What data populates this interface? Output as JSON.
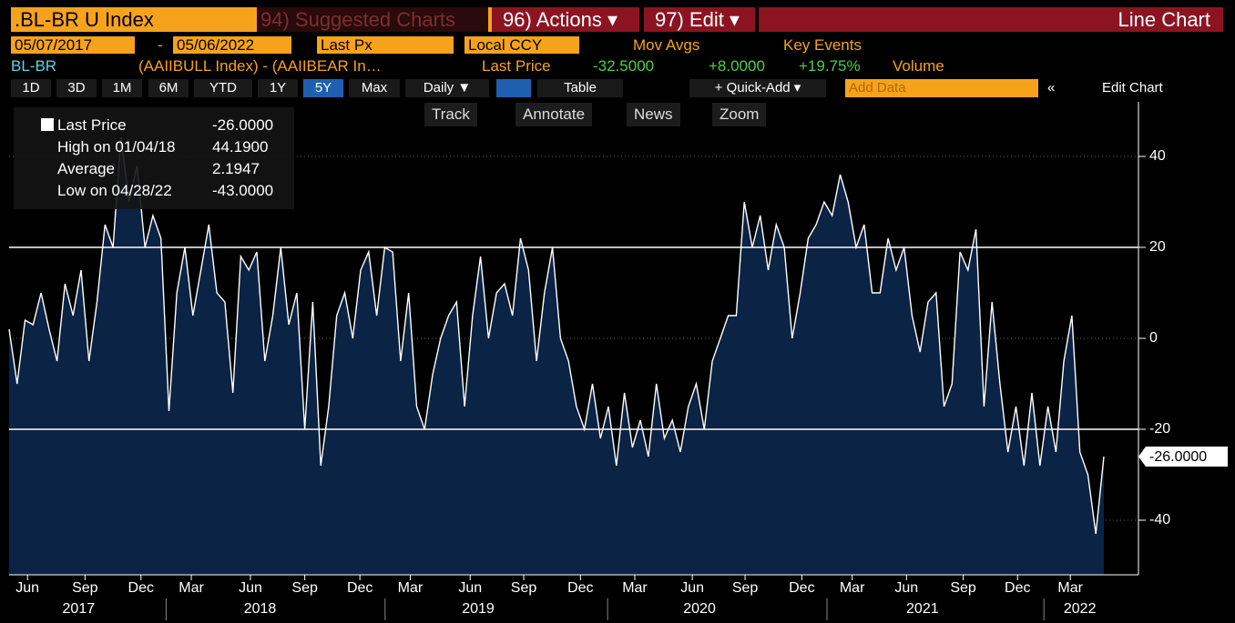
{
  "header": {
    "security": ".BL-BR U Index",
    "suggested": "94) Suggested Charts",
    "actions": "96) Actions ▾",
    "edit": "97) Edit ▾",
    "view": "Line Chart"
  },
  "settings": {
    "start": "05/07/2017",
    "dash": "-",
    "end": "05/06/2022",
    "field": "Last Px",
    "currency": "Local CCY",
    "mov_avgs": "Mov Avgs",
    "key_events": "Key Events"
  },
  "quote": {
    "ticker": "BL-BR",
    "description": "(AAIIBULL Index) - (AAIIBEAR In…",
    "last_label": "Last Price",
    "last": "-32.5000",
    "change": "+8.0000",
    "change_pct": "+19.75%",
    "volume": "Volume"
  },
  "toolbar": {
    "periods": [
      "1D",
      "3D",
      "1M",
      "6M",
      "YTD",
      "1Y",
      "5Y",
      "Max"
    ],
    "frequency": "Daily ▼",
    "table": "Table",
    "quick_add": "+ Quick-Add ▾",
    "add_data": "Add Data",
    "collapse": "«",
    "edit_chart": "Edit Chart",
    "tools": [
      "Track",
      "Annotate",
      "News",
      "Zoom"
    ]
  },
  "legend": [
    {
      "label": "Last Price",
      "value": "-26.0000"
    },
    {
      "label": "High on 01/04/18",
      "value": "44.1900"
    },
    {
      "label": "Average",
      "value": "2.1947"
    },
    {
      "label": "Low on 04/28/22",
      "value": "-43.0000"
    }
  ],
  "chart_data": {
    "type": "area",
    "color": "#ffffff",
    "fill": "#0b2344",
    "last_label": "-26.0000",
    "values": [
      2,
      -10,
      4,
      3,
      10,
      2,
      -5,
      12,
      5,
      15,
      -5,
      8,
      25,
      20,
      44.19,
      30,
      38,
      20,
      27,
      22,
      -16,
      10,
      20,
      5,
      15,
      25,
      10,
      8,
      -12,
      18,
      15,
      19,
      -5,
      5,
      20,
      3,
      10,
      -20,
      8,
      -28,
      -15,
      5,
      10,
      0,
      15,
      19,
      5,
      20,
      19,
      -5,
      10,
      -15,
      -20,
      -8,
      0,
      5,
      8,
      -15,
      5,
      18,
      0,
      10,
      12,
      5,
      22,
      15,
      -5,
      10,
      20,
      0,
      -5,
      -15,
      -20,
      -10,
      -22,
      -15,
      -28,
      -12,
      -24,
      -18,
      -26,
      -10,
      -22,
      -18,
      -25,
      -15,
      -10,
      -20,
      -5,
      0,
      5,
      5,
      30,
      20,
      27,
      15,
      25,
      20,
      0,
      10,
      22,
      25,
      30,
      27,
      36,
      30,
      20,
      25,
      10,
      10,
      22,
      15,
      20,
      5,
      -3,
      8,
      10,
      -15,
      -10,
      19,
      15,
      24,
      -15,
      8,
      -10,
      -25,
      -15,
      -28,
      -12,
      -28,
      -15,
      -25,
      -5,
      5,
      -25,
      -30,
      -43,
      -26
    ],
    "ylim": [
      -52,
      52
    ],
    "yticks": [
      40,
      20,
      0,
      -20,
      -40
    ],
    "reference_lines": [
      20,
      -20
    ],
    "grid": true,
    "xticks": [
      {
        "value": 2.3,
        "label": "Jun"
      },
      {
        "value": 9.5,
        "label": "Sep"
      },
      {
        "value": 16.5,
        "label": "Dec"
      },
      {
        "value": 22.8,
        "label": "Mar"
      },
      {
        "value": 30.2,
        "label": "Jun"
      },
      {
        "value": 37,
        "label": "Sep"
      },
      {
        "value": 43.9,
        "label": "Dec"
      },
      {
        "value": 50.2,
        "label": "Mar"
      },
      {
        "value": 57.7,
        "label": "Jun"
      },
      {
        "value": 64.4,
        "label": "Sep"
      },
      {
        "value": 71.5,
        "label": "Dec"
      },
      {
        "value": 78.3,
        "label": "Mar"
      },
      {
        "value": 85.5,
        "label": "Jun"
      },
      {
        "value": 92.1,
        "label": "Sep"
      },
      {
        "value": 99.2,
        "label": "Dec"
      },
      {
        "value": 105.5,
        "label": "Mar"
      },
      {
        "value": 112.3,
        "label": "Jun"
      },
      {
        "value": 119.4,
        "label": "Sep"
      },
      {
        "value": 126.2,
        "label": "Dec"
      },
      {
        "value": 132.8,
        "label": "Mar"
      }
    ],
    "years": [
      {
        "value": 8.7,
        "label": "2017"
      },
      {
        "value": 31.4,
        "label": "2018"
      },
      {
        "value": 58.7,
        "label": "2019"
      },
      {
        "value": 86.4,
        "label": "2020"
      },
      {
        "value": 114.3,
        "label": "2021"
      },
      {
        "value": 134,
        "label": "2022"
      }
    ]
  }
}
